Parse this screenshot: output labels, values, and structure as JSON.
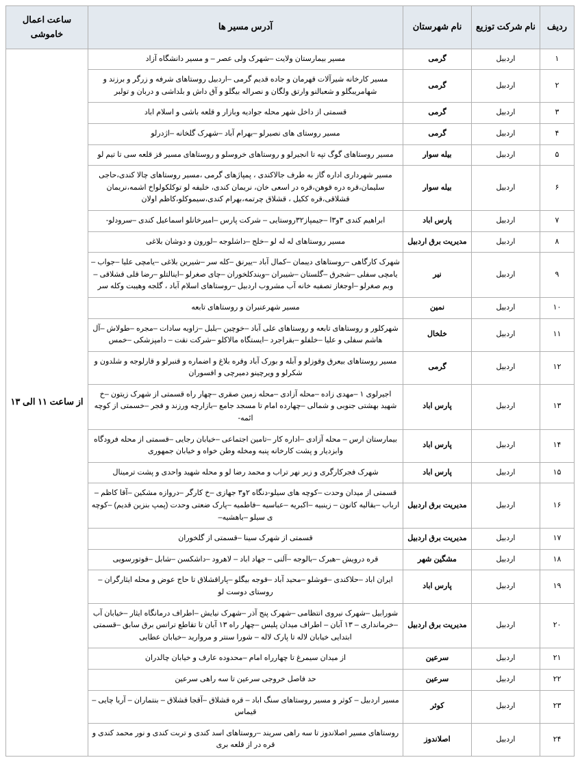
{
  "headers": {
    "row": "ردیف",
    "dist": "نام شرکت توزیع",
    "city": "نام شهرستان",
    "addr": "آدرس مسیر ها",
    "time": "ساعت اعمال خاموشی"
  },
  "time_label": "از ساعت ۱۱ الی ۱۳",
  "rows": [
    {
      "n": "۱",
      "dist": "اردبیل",
      "city": "گرمی",
      "addr": "مسیر بیمارستان ولایت –شهرک ولی عصر – و مسیر دانشگاه آزاد"
    },
    {
      "n": "۲",
      "dist": "اردبیل",
      "city": "گرمی",
      "addr": "مسیر کارخانه شیرآلات قهرمان و جاده قدیم گرمی –اردبیل روستاهای شرفه و زرگر و برزند و شهامریبگلو و شعبالنو وارتق ولگان و نصراله بیگلو و آق داش و بلداشی و دربان و تولبر"
    },
    {
      "n": "۳",
      "dist": "اردبیل",
      "city": "گرمی",
      "addr": "قسمتی از داخل شهر محله جوادیه وبازار و قلعه باشی و اسلام اباد"
    },
    {
      "n": "۴",
      "dist": "اردبیل",
      "city": "گرمی",
      "addr": "مسیر روستای های نصیرلو –بهرام آباد –شهرک گلخانه –اژدرلو"
    },
    {
      "n": "۵",
      "dist": "اردبیل",
      "city": "بیله سوار",
      "addr": "مسیر روستاهای گوگ تپه تا انجیرلو و روستاهای خروسلو و روستاهای مسیر قز قلعه سی تا تیم لو"
    },
    {
      "n": "۶",
      "dist": "اردبیل",
      "city": "بیله سوار",
      "addr": "مسیر شهرداری اداره گاز به طرف جالاکندی ، پمپاژهای گرمی ،مسیر روستاهای چالا کندی،حاجی سلیمان،قره دره قوهن،قره در اسعی خان، نریمان کندی، خلیفه لو توکلکولواخ اشمه،نریمان قشلاقی،قره ککیل ، قشلاق چرتمه،بهرام کندی،سیموکلو،کاظم اولان"
    },
    {
      "n": "۷",
      "dist": "اردبیل",
      "city": "پارس اباد",
      "addr": "ابراهیم کندی ۳و۳ا –جیمپاز۳۲روستایی – شرکت پارس –امیرخانلو اسماعیل کندی –سرودلو-"
    },
    {
      "n": "۸",
      "dist": "اردبیل",
      "city": "مدیریت برق اردبیل",
      "addr": "مسیر روستاهای له له لو –خلج –داشلوجه –لورون و دوشان بلاغی"
    },
    {
      "n": "۹",
      "dist": "اردبیل",
      "city": "نیر",
      "addr": "شهرک کارگاهی –روستاهای دیبمان –کمال آباد –ییرنق –کله سر –شیرین بلاغی –یامچی علیا –جواب –یامچی سفلی –شجرق –گلستان –شیبران –ویندکلخوران –چای صغرلو –اینالتلو –رضا قلی قشلاقی –وبم صغرلو –اوجغاز تصفیه خانه آب مشروب اردبیل –روستاهای اسلام آباد ، گلجه وهیبت وکله سر"
    },
    {
      "n": "۱۰",
      "dist": "اردبیل",
      "city": "نمین",
      "addr": "مسیر شهرعنبران و روستاهای تابعه"
    },
    {
      "n": "۱۱",
      "dist": "اردبیل",
      "city": "خلخال",
      "addr": "شهرکلور و روستاهای تابعه و روستاهای علی آباد –خوچین –بلبل –زاویه سادات –مجره –طولاش –آل هاشم سفلی و علیا –خلفلو –بقراجرد –ایستگاه مالاکلو –شرکت نقت – دامپزشکی –خمس"
    },
    {
      "n": "۱۲",
      "dist": "اردبیل",
      "city": "گرمی",
      "addr": "مسیر روستاهای بیعرق وقوزلو و آبله و بورک آباد وقره بلاغ و اضماره و قنبرلو و قارلوجه و شلدون و شکرلو و ویرچینو دمیرچی و افسوران"
    },
    {
      "n": "۱۳",
      "dist": "اردبیل",
      "city": "پارس اباد",
      "addr": "اجیرلوی ۱ –مهدی زاده –محله آزادی –محله زمین صقری –چهار راه قسمتی از شهرک زیتون –خ شهید بهشتی جنوبی و شمالی –چهارده امام تا مسجد جامع –بازارچه ورزند و فجر –خسمتی از کوچه ائمه-"
    },
    {
      "n": "۱۴",
      "dist": "اردبیل",
      "city": "پارس اباد",
      "addr": "بیمارستان ارس – محله آزادی –اداره کار –تامین اجتماعی –خیابان رجایی –قسمتی از محله فرودگاه وابزدیار و پشت کارخانه پنبه ومخله وطن خواه و خیابان جمهوری"
    },
    {
      "n": "۱۵",
      "dist": "اردبیل",
      "city": "پارس اباد",
      "addr": "شهرک فجرکارگری و زیر نهر تراب و محمد رضا لو و محله شهید واحدی و پشت ترمینال"
    },
    {
      "n": "۱۶",
      "dist": "اردبیل",
      "city": "مدیریت برق اردبیل",
      "addr": "قسمتی از میدان وحدت –کوچه های سیلو-دنگاه ۲و۳ جهازی –خ کارگر –دروازه مشکین –آقا کاظم –ارباب –بقالیه کانون – زینبیه –اکبریه –عباسیه –فاطمیه –پارک ضعتی وحدت (پمپ بنزین قدیم) –کوچه ی سیلو –باهشیه–"
    },
    {
      "n": "۱۷",
      "dist": "اردبیل",
      "city": "مدیریت برق اردبیل",
      "addr": "قسمتی از شهرک سینا –قسمتی از گلخوران"
    },
    {
      "n": "۱۸",
      "dist": "اردبیل",
      "city": "مشگین شهر",
      "addr": "قره درویش –هبرک –بالوجه –آلنی – جهاد اباد – لاهرود –داشکسن –شابل –قوتورسویی"
    },
    {
      "n": "۱۹",
      "dist": "اردبیل",
      "city": "پارس اباد",
      "addr": "ایران اباد –حلاکندی –قوشلو –محید آباد –قوجه بیگلو –پاراقشلاق تا حاج عوض و محله ایثارگران –روستای دوست لو"
    },
    {
      "n": "۲۰",
      "dist": "اردبیل",
      "city": "مدیریت برق اردبیل",
      "addr": "شورابیل –شهرک نیروی انتظامی  –شهرک پنج آذر  –شهرک نیایش –اطراف درمانگاه ایثار –خیابان آب –خرمانداری – ۱۳ آبان – اطراف میدان پلیس –چهار راه ۱۳ آبان تا تقاطع ترانس برق سابق –قسمتی ابتدایی خیابان لاله تا پارک لاله – شورا سنتر و مروارید –خیابان عطایی"
    },
    {
      "n": "۲۱",
      "dist": "اردبیل",
      "city": "سرعین",
      "addr": "از میدان سیمرغ تا چهارراه امام –محدوده عارف و خیابان چالدران"
    },
    {
      "n": "۲۲",
      "dist": "اردبیل",
      "city": "سرعین",
      "addr": "حد فاصل خروجی سرعین تا سه راهی سرعین"
    },
    {
      "n": "۲۳",
      "dist": "اردبیل",
      "city": "کوثر",
      "addr": "مسیر اردبیل – کوثر و مسیر روستاهای سنگ اباد – قره قشلاق  –آقجا قشلاق – بنتماران – آریا چایی  –قیماس"
    },
    {
      "n": "۲۴",
      "dist": "اردبیل",
      "city": "اصلاندوز",
      "addr": "روستاهای مسیر اصلاندوز تا سه راهی سریند –روستاهای اسد کندی و تربت کندی و نور محمد کندی و قره در از قلعه بری"
    }
  ]
}
